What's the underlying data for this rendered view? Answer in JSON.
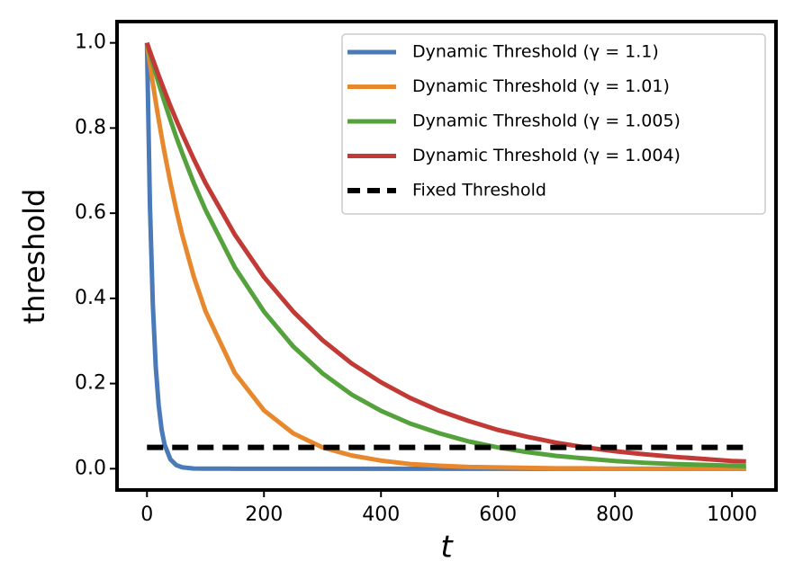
{
  "chart_data": {
    "type": "line",
    "x_label": "t",
    "y_label": "threshold",
    "x": [
      0,
      5,
      10,
      15,
      20,
      25,
      30,
      40,
      50,
      60,
      80,
      100,
      150,
      200,
      250,
      300,
      350,
      400,
      450,
      500,
      550,
      600,
      650,
      700,
      750,
      800,
      850,
      900,
      950,
      1000,
      1024
    ],
    "series": [
      {
        "name": "Dynamic Threshold (γ = 1.1)",
        "color": "#4a7ab8",
        "style": "solid",
        "values": [
          1,
          0.621,
          0.386,
          0.239,
          0.149,
          0.092,
          0.057,
          0.022,
          0.0085,
          0.0033,
          0.0005,
          0.0001,
          0,
          0,
          0,
          0,
          0,
          0,
          0,
          0,
          0,
          0,
          0,
          0,
          0,
          0,
          0,
          0,
          0,
          0,
          0
        ]
      },
      {
        "name": "Dynamic Threshold (γ = 1.01)",
        "color": "#e8882d",
        "style": "solid",
        "values": [
          1,
          0.951,
          0.905,
          0.861,
          0.82,
          0.78,
          0.742,
          0.672,
          0.608,
          0.55,
          0.451,
          0.37,
          0.225,
          0.137,
          0.083,
          0.05,
          0.031,
          0.019,
          0.011,
          0.007,
          0.004,
          0.003,
          0.002,
          0.001,
          0.001,
          0,
          0,
          0,
          0,
          0,
          0
        ]
      },
      {
        "name": "Dynamic Threshold (γ = 1.005)",
        "color": "#55a23d",
        "style": "solid",
        "values": [
          1,
          0.975,
          0.951,
          0.928,
          0.905,
          0.883,
          0.861,
          0.819,
          0.779,
          0.742,
          0.671,
          0.608,
          0.473,
          0.369,
          0.287,
          0.224,
          0.174,
          0.136,
          0.106,
          0.083,
          0.064,
          0.05,
          0.039,
          0.03,
          0.024,
          0.018,
          0.014,
          0.011,
          0.009,
          0.007,
          0.006
        ]
      },
      {
        "name": "Dynamic Threshold (γ = 1.004)",
        "color": "#c13a35",
        "style": "solid",
        "values": [
          1,
          0.98,
          0.961,
          0.942,
          0.923,
          0.905,
          0.887,
          0.852,
          0.819,
          0.787,
          0.727,
          0.671,
          0.55,
          0.45,
          0.369,
          0.302,
          0.247,
          0.203,
          0.166,
          0.136,
          0.112,
          0.091,
          0.075,
          0.061,
          0.05,
          0.041,
          0.034,
          0.028,
          0.023,
          0.018,
          0.017
        ]
      },
      {
        "name": "Fixed Threshold",
        "color": "#000000",
        "style": "dashed",
        "values": [
          0.05,
          0.05,
          0.05,
          0.05,
          0.05,
          0.05,
          0.05,
          0.05,
          0.05,
          0.05,
          0.05,
          0.05,
          0.05,
          0.05,
          0.05,
          0.05,
          0.05,
          0.05,
          0.05,
          0.05,
          0.05,
          0.05,
          0.05,
          0.05,
          0.05,
          0.05,
          0.05,
          0.05,
          0.05,
          0.05,
          0.05
        ]
      }
    ],
    "xlim": [
      -51.2,
      1075.2
    ],
    "ylim": [
      -0.05,
      1.05
    ],
    "xticks": [
      0,
      200,
      400,
      600,
      800,
      1000
    ],
    "yticks": [
      {
        "value": 0,
        "label": "0.0"
      },
      {
        "value": 0.2,
        "label": "0.2"
      },
      {
        "value": 0.4,
        "label": "0.4"
      },
      {
        "value": 0.6,
        "label": "0.6"
      },
      {
        "value": 0.8,
        "label": "0.8"
      },
      {
        "value": 1,
        "label": "1.0"
      }
    ],
    "legend": "upper right",
    "grid": false
  }
}
